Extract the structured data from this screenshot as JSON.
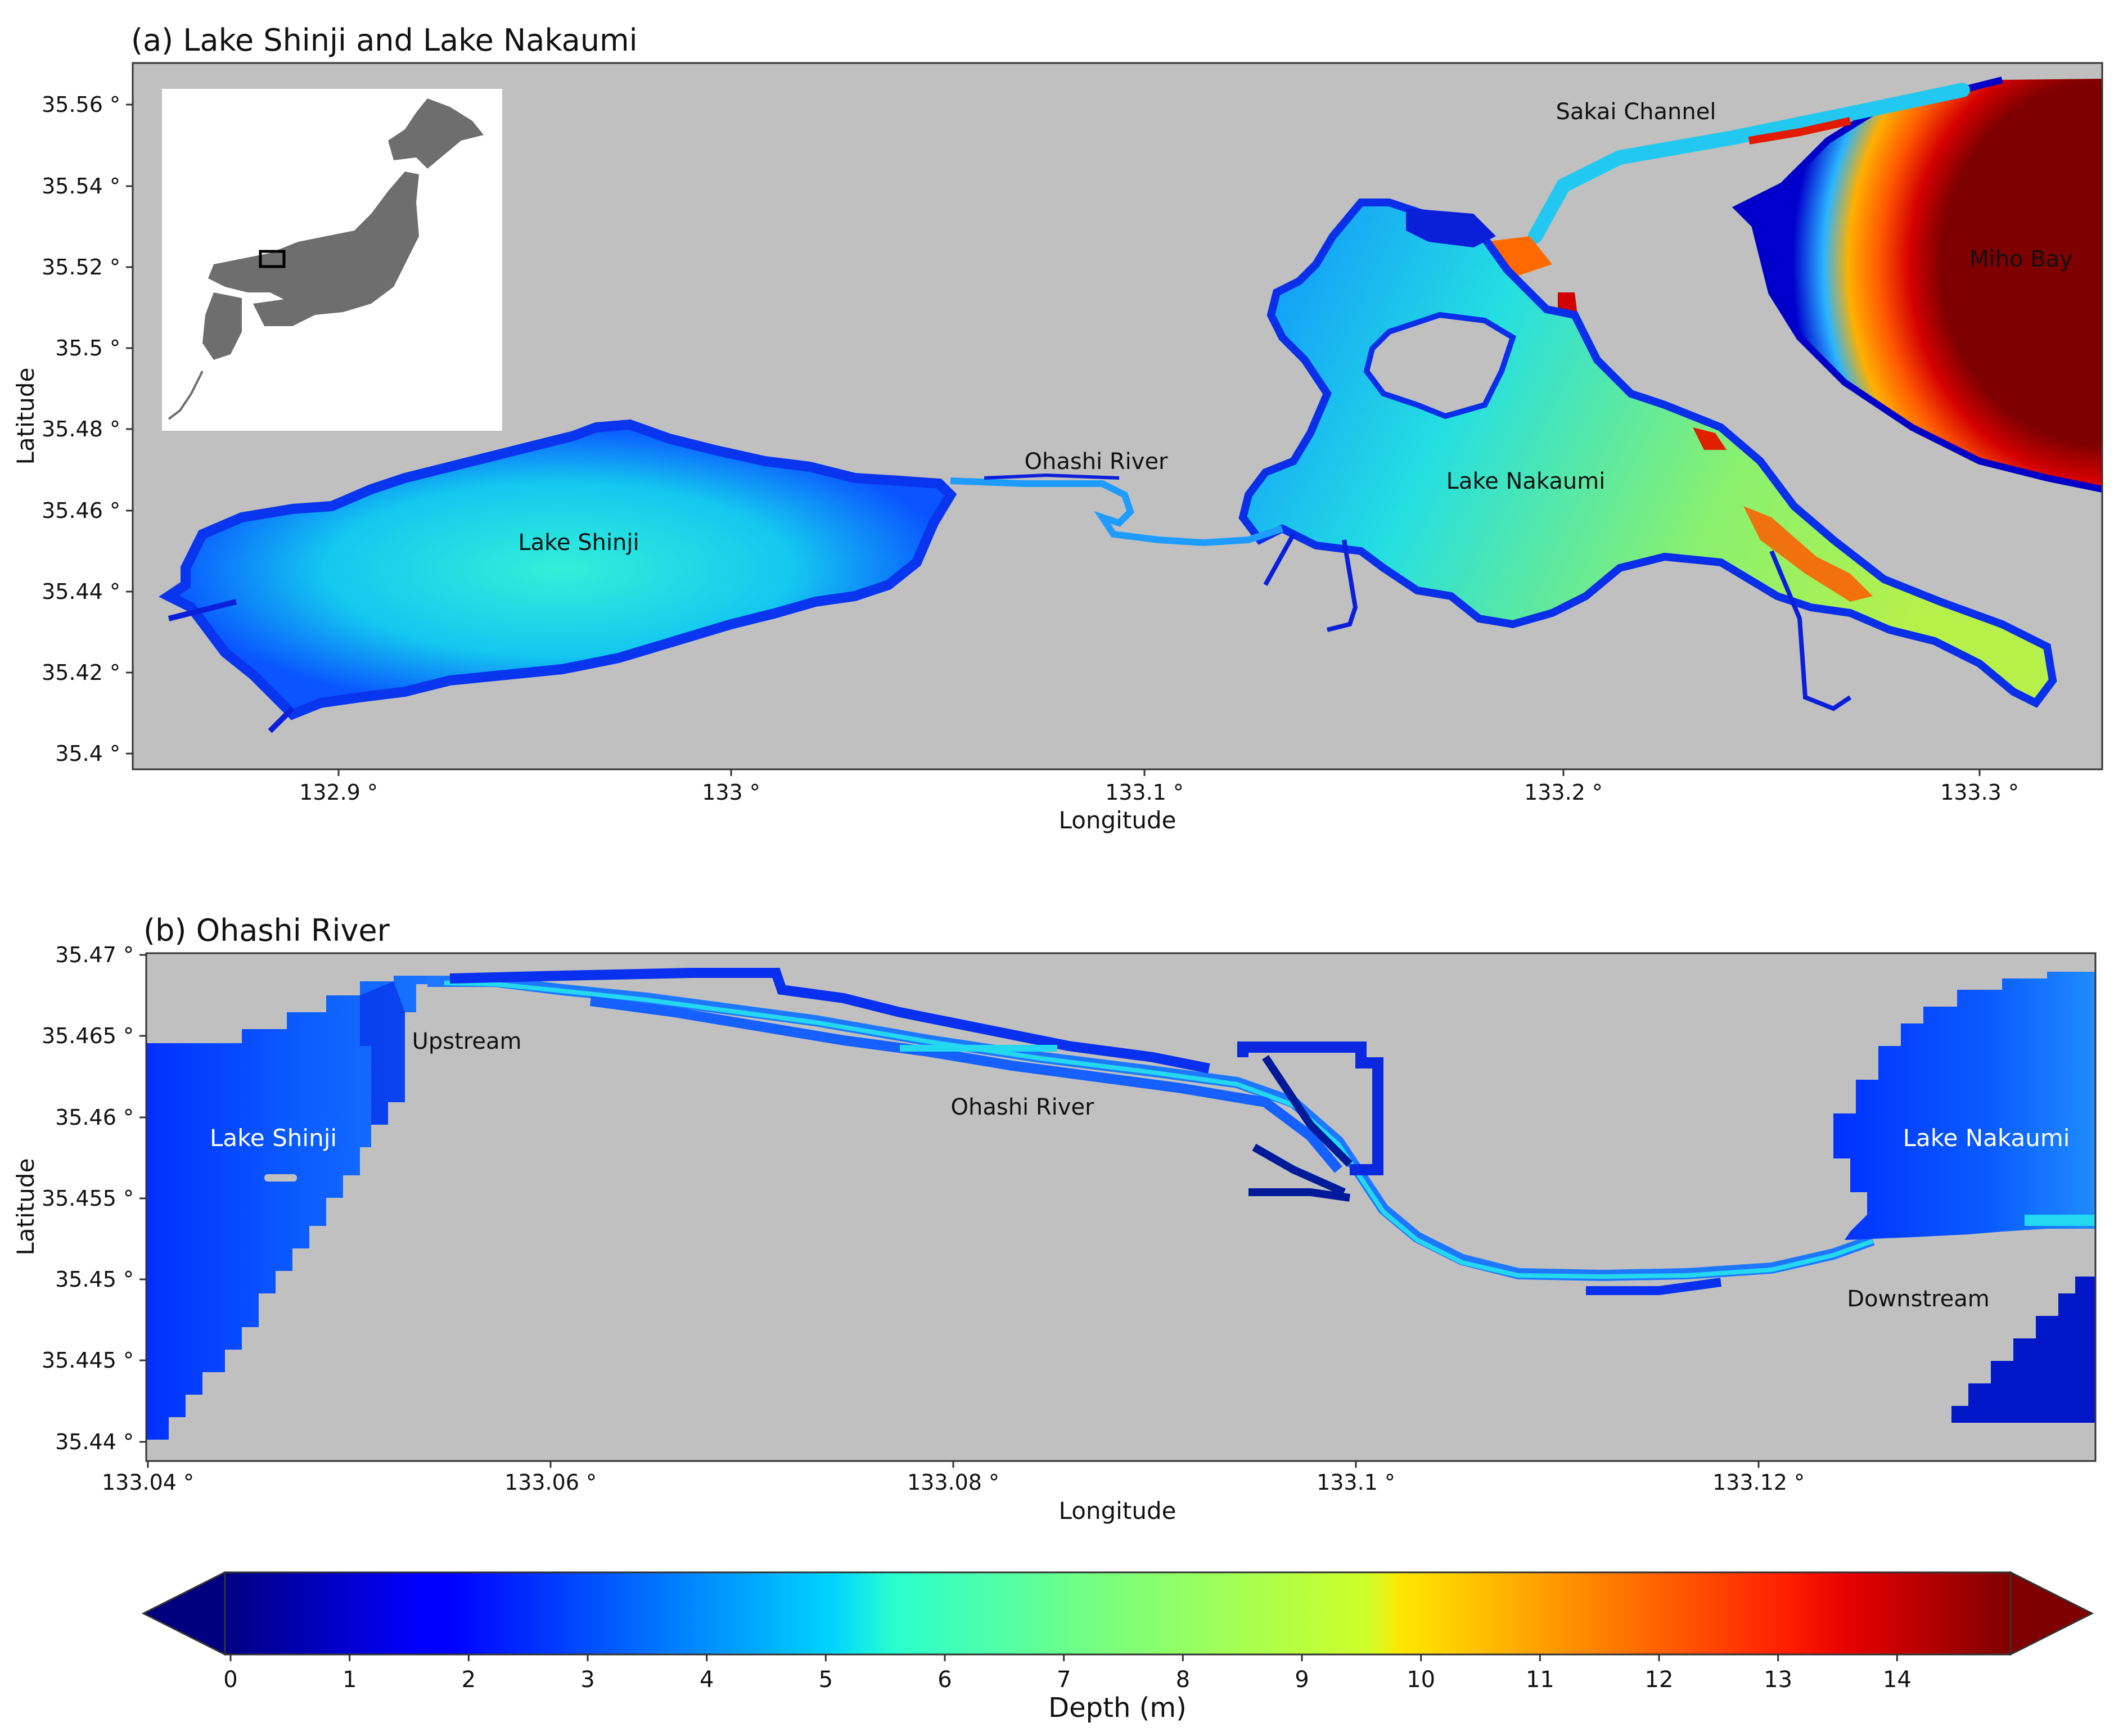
{
  "panel_a": {
    "title": "(a) Lake Shinji and Lake Nakaumi",
    "xlabel": "Longitude",
    "ylabel": "Latitude",
    "xticks": [
      "132.9 °",
      "133 °",
      "133.1 °",
      "133.2 °",
      "133.3 °"
    ],
    "yticks": [
      "35.56 °",
      "35.54 °",
      "35.52 °",
      "35.5 °",
      "35.48 °",
      "35.46 °",
      "35.44 °",
      "35.42 °",
      "35.4 °"
    ],
    "labels": {
      "lake_shinji": "Lake Shinji",
      "ohashi_river": "Ohashi River",
      "lake_nakaumi": "Lake Nakaumi",
      "sakai_channel": "Sakai Channel",
      "miho_bay": "Miho Bay"
    }
  },
  "panel_b": {
    "title": "(b) Ohashi River",
    "xlabel": "Longitude",
    "ylabel": "Latitude",
    "xticks": [
      "133.04 °",
      "133.06 °",
      "133.08 °",
      "133.1 °",
      "133.12 °"
    ],
    "yticks": [
      "35.47 °",
      "35.465 °",
      "35.46 °",
      "35.455 °",
      "35.45 °",
      "35.445 °",
      "35.44 °"
    ],
    "labels": {
      "upstream": "Upstream",
      "ohashi_river": "Ohashi River",
      "lake_shinji": "Lake Shinji",
      "lake_nakaumi": "Lake Nakaumi",
      "downstream": "Downstream"
    }
  },
  "colorbar": {
    "label": "Depth (m)",
    "ticks": [
      "0",
      "1",
      "2",
      "3",
      "4",
      "5",
      "6",
      "7",
      "8",
      "9",
      "10",
      "11",
      "12",
      "13",
      "14"
    ],
    "range_m": [
      0,
      15
    ],
    "colormap": "jet",
    "extend": "both",
    "low_color": "#00007f",
    "high_color": "#7f0000"
  },
  "colors": {
    "land": "#c0c0c0",
    "inset_japan": "#6e6e6e"
  }
}
